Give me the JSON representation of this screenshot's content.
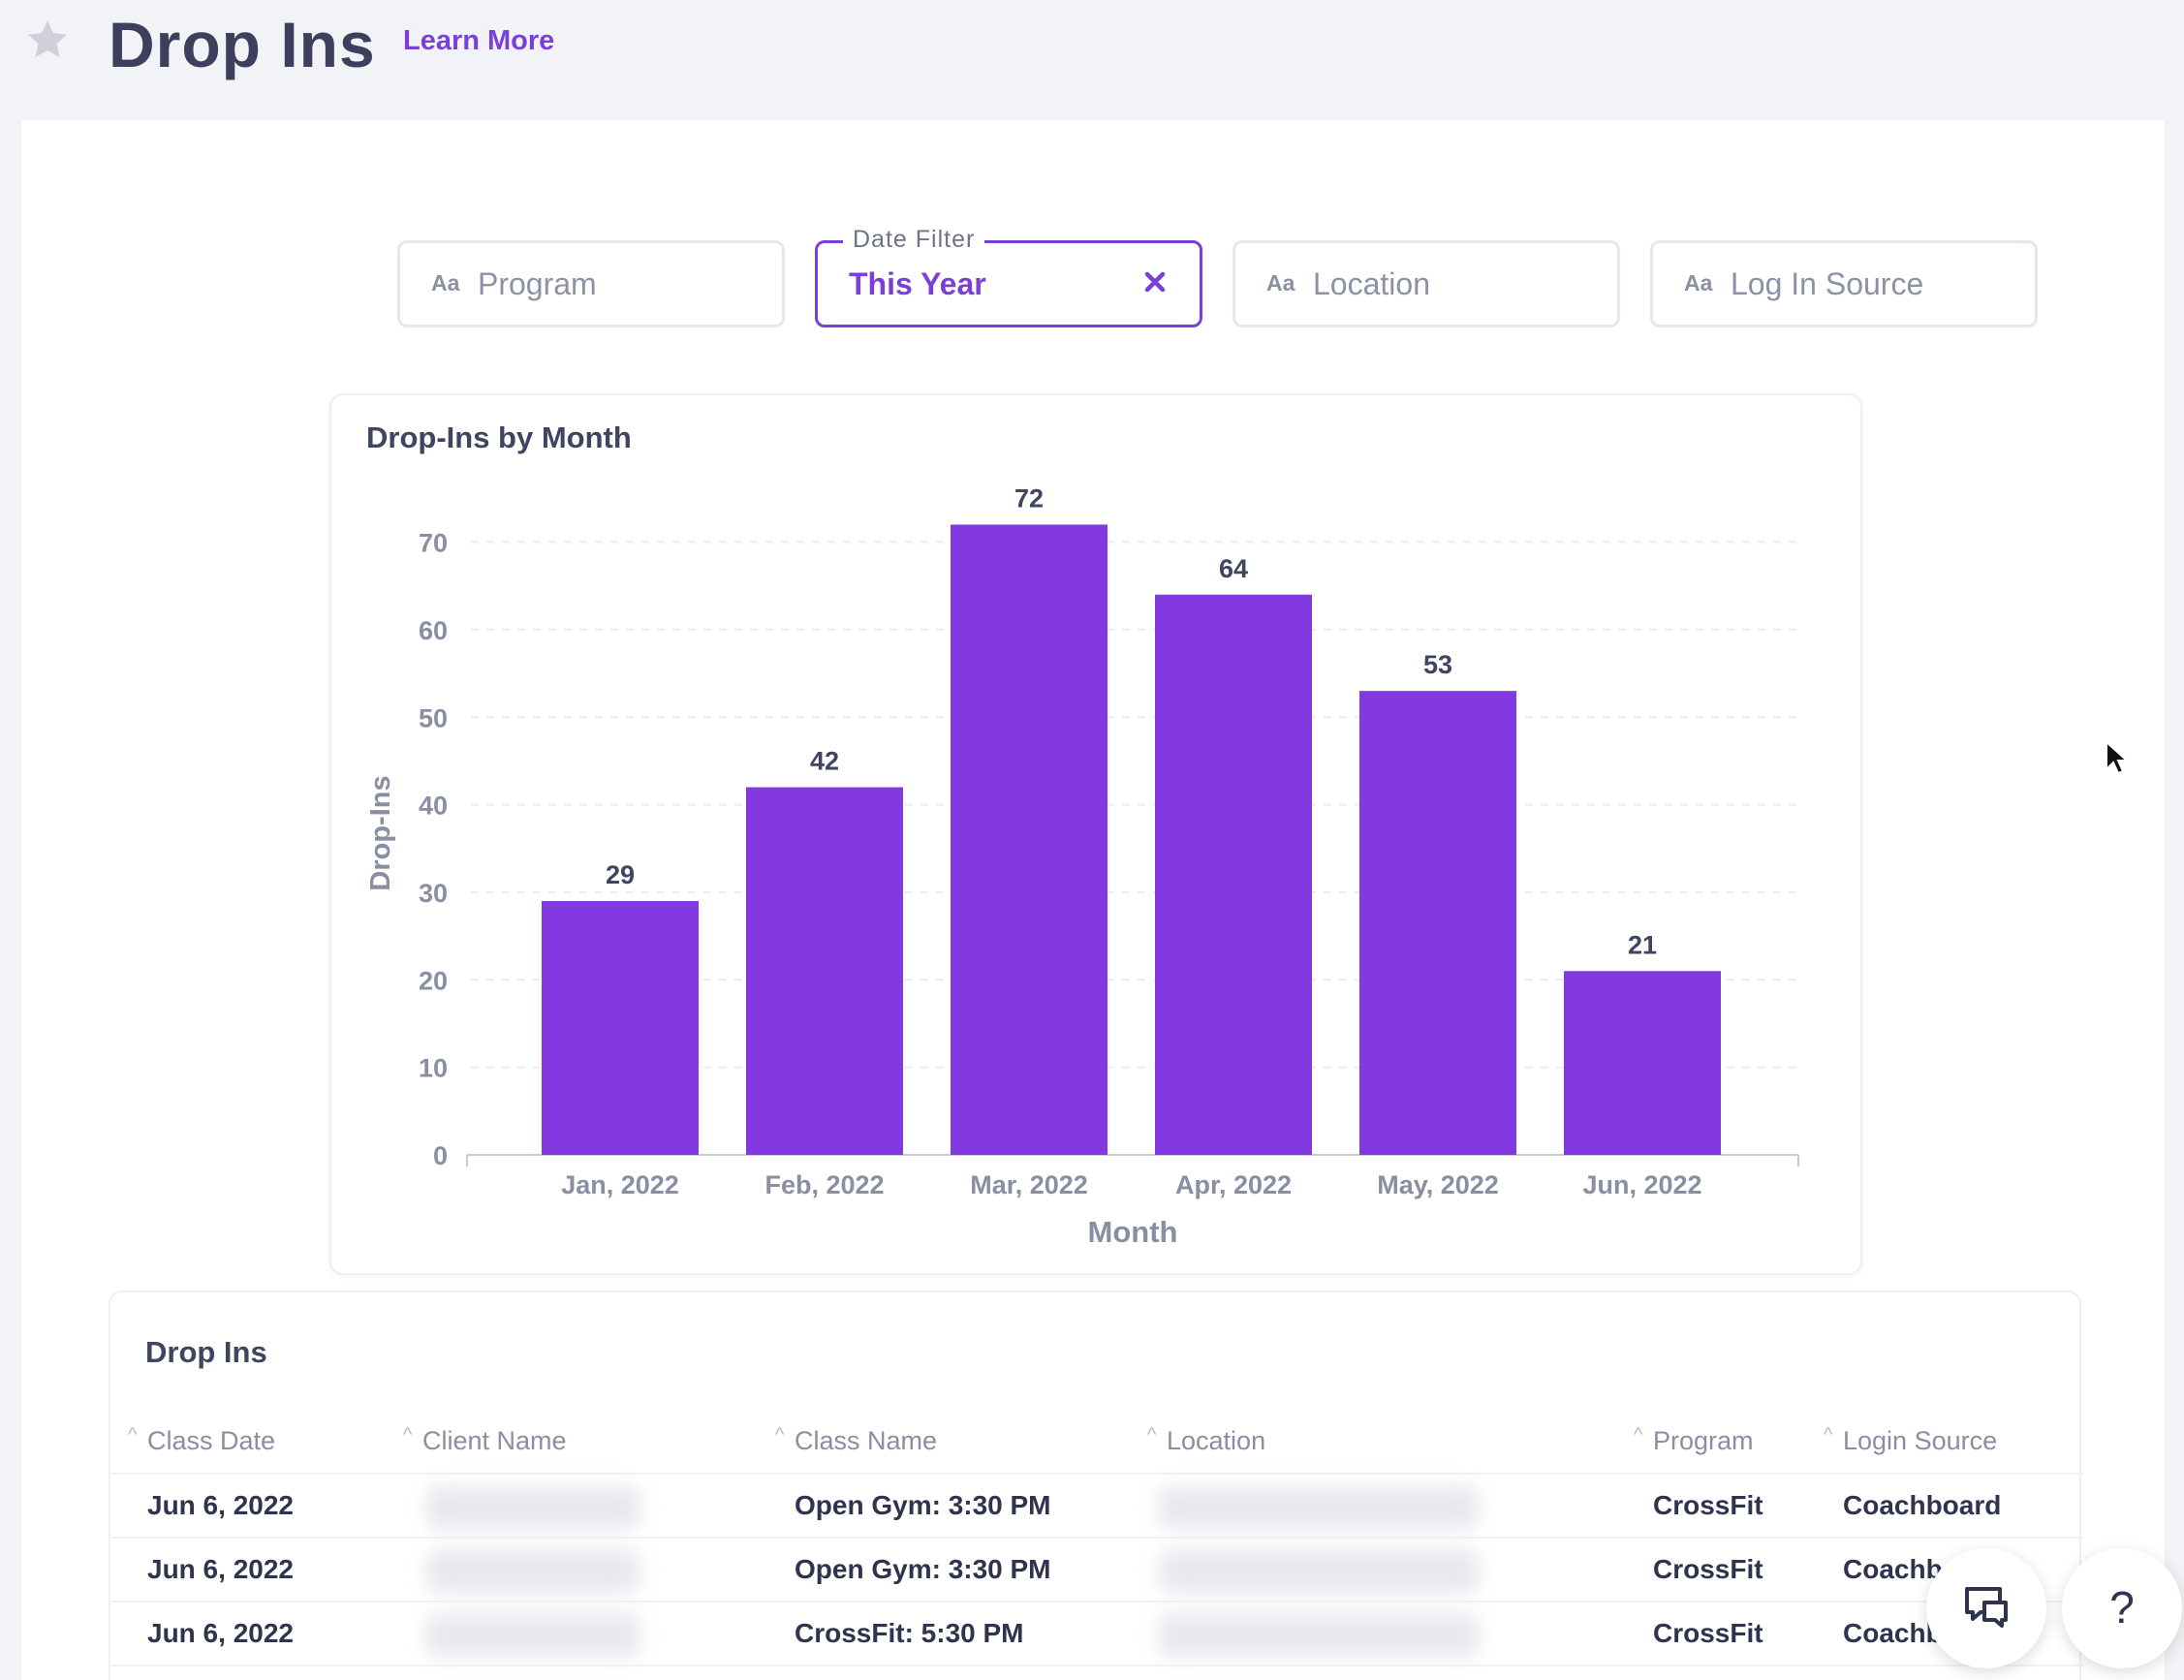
{
  "header": {
    "title": "Drop Ins",
    "learn_more": "Learn More"
  },
  "filters": {
    "aa": "Aa",
    "program": "Program",
    "date": {
      "legend": "Date Filter",
      "value": "This Year"
    },
    "location": "Location",
    "login_source": "Log In Source"
  },
  "colors": {
    "accent": "#7b3fd9",
    "bar": "#8239e0"
  },
  "chart_data": {
    "type": "bar",
    "title": "Drop-Ins by Month",
    "categories": [
      "Jan, 2022",
      "Feb, 2022",
      "Mar, 2022",
      "Apr, 2022",
      "May, 2022",
      "Jun, 2022"
    ],
    "values": [
      29,
      42,
      72,
      64,
      53,
      21
    ],
    "xlabel": "Month",
    "ylabel": "Drop-Ins",
    "ylim": [
      0,
      70
    ],
    "yticks": [
      0,
      10,
      20,
      30,
      40,
      50,
      60,
      70
    ],
    "grid": true,
    "data_labels": true
  },
  "table": {
    "title": "Drop Ins",
    "columns": [
      "Class Date",
      "Client Name",
      "Class Name",
      "Location",
      "Program",
      "Login Source"
    ],
    "rows": [
      {
        "date": "Jun 6, 2022",
        "class": "Open Gym: 3:30 PM",
        "program": "CrossFit",
        "source": "Coachboard"
      },
      {
        "date": "Jun 6, 2022",
        "class": "Open Gym: 3:30 PM",
        "program": "CrossFit",
        "source": "Coachboard"
      },
      {
        "date": "Jun 6, 2022",
        "class": "CrossFit: 5:30 PM",
        "program": "CrossFit",
        "source": "Coachboard"
      }
    ]
  },
  "fabs": {
    "help": "?"
  }
}
